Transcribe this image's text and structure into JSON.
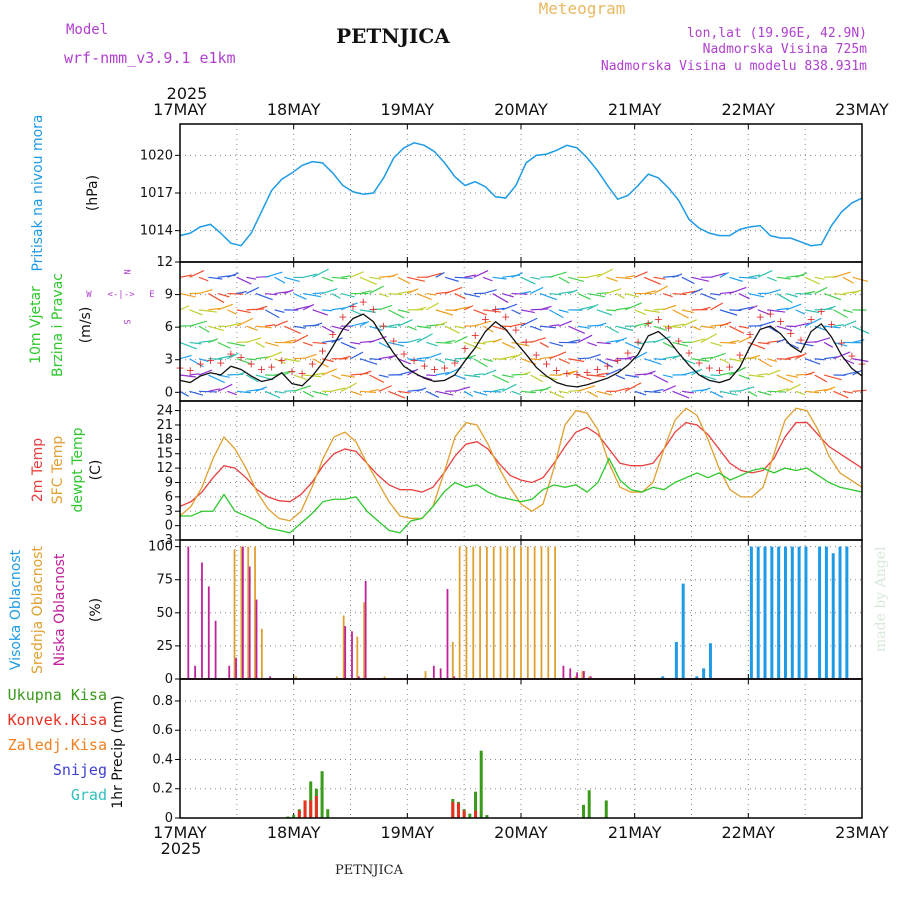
{
  "header": {
    "model_label": "Model",
    "model_name": "wrf-nmm_v3.9.1 e1km",
    "station": "PETNJICA",
    "meteogram_label": "Meteogram",
    "lonlat": "lon,lat (19.96E, 42.9N)",
    "altitude": "Nadmorska Visina 725m",
    "model_altitude": "Nadmorska Visina u modelu 838.931m",
    "footer_station": "PETNJICA",
    "watermark": "made by Angel"
  },
  "colors": {
    "pressure": "#1e9be6",
    "temp2m": "#e84040",
    "sfc_temp": "#e0a030",
    "dewpoint": "#2ec82e",
    "high_cloud": "#1e9be6",
    "mid_cloud": "#e0a030",
    "low_cloud": "#c0209a",
    "total_precip": "#3a9a1a",
    "conv_precip": "#e83020",
    "frozen": "#f08020",
    "snow": "#4040d0",
    "hail": "#30c0c0",
    "title": "#111111",
    "meteogram": "#e8b860",
    "info": "#b040d0"
  },
  "chart_data": [
    {
      "type": "line",
      "panel": "pressure",
      "year": "2025",
      "x_tick_labels": [
        "17MAY",
        "18MAY",
        "19MAY",
        "20MAY",
        "21MAY",
        "22MAY",
        "23MAY"
      ],
      "ylabel_series": "Pritisak na nivou mora",
      "ylabel_units": "(hPa)",
      "y_ticks": [
        1014,
        1017,
        1020
      ],
      "ylim": [
        1011.5,
        1022.5
      ],
      "grid": true,
      "series": [
        {
          "values": [
            1013.6,
            1013.8,
            1014.3,
            1014.5,
            1013.8,
            1013.0,
            1012.8,
            1013.8,
            1015.5,
            1017.2,
            1018.1,
            1018.6,
            1019.2,
            1019.5,
            1019.4,
            1018.6,
            1017.6,
            1017.1,
            1016.9,
            1017.0,
            1018.2,
            1019.8,
            1020.6,
            1021.0,
            1020.8,
            1020.3,
            1019.4,
            1018.3,
            1017.6,
            1017.9,
            1017.5,
            1016.7,
            1016.6,
            1017.6,
            1019.4,
            1020.0,
            1020.1,
            1020.4,
            1020.8,
            1020.6,
            1019.8,
            1018.8,
            1017.6,
            1016.5,
            1016.8,
            1017.6,
            1018.5,
            1018.2,
            1017.4,
            1016.4,
            1014.9,
            1014.2,
            1013.8,
            1013.6,
            1013.6,
            1014.1,
            1014.3,
            1014.4,
            1013.6,
            1013.4,
            1013.4,
            1013.1,
            1012.8,
            1012.9,
            1014.4,
            1015.5,
            1016.2,
            1016.6
          ]
        }
      ]
    },
    {
      "type": "line",
      "panel": "wind",
      "ylabel_series": "10m Vjetar",
      "ylabel_series2": "Brzina i Pravac",
      "ylabel_units": "(m/s)",
      "compass": {
        "w": "W",
        "e": "E",
        "n": "N",
        "s": "S",
        "sep": "<-|->"
      },
      "y_ticks": [
        0,
        3,
        6,
        9,
        12
      ],
      "ylim": [
        -0.8,
        12
      ],
      "grid": true,
      "series": [
        {
          "name": "wind speed",
          "values": [
            1.1,
            0.9,
            1.5,
            1.8,
            1.6,
            2.4,
            2.1,
            1.5,
            1.0,
            1.2,
            1.8,
            0.8,
            0.6,
            1.5,
            2.7,
            4.2,
            5.8,
            6.8,
            7.2,
            6.5,
            5.0,
            3.6,
            2.4,
            1.8,
            1.3,
            1.0,
            1.1,
            1.6,
            2.9,
            4.1,
            5.6,
            6.5,
            5.8,
            4.6,
            3.5,
            2.3,
            1.5,
            0.9,
            0.6,
            0.5,
            0.7,
            1.0,
            1.3,
            1.8,
            2.5,
            3.5,
            5.2,
            5.6,
            4.8,
            3.6,
            2.5,
            1.6,
            1.1,
            0.9,
            1.2,
            2.3,
            4.2,
            5.8,
            6.1,
            5.4,
            4.3,
            3.7,
            5.6,
            6.3,
            5.1,
            3.4,
            2.2,
            1.5
          ]
        }
      ]
    },
    {
      "type": "line",
      "panel": "temperature",
      "ylabel_series": [
        "2m Temp",
        "SFC Temp",
        "dewpt Temp"
      ],
      "ylabel_units": "(C)",
      "y_ticks": [
        -3,
        0,
        3,
        6,
        9,
        12,
        15,
        18,
        21,
        24
      ],
      "ylim": [
        -3,
        26
      ],
      "grid": true,
      "series": [
        {
          "name": "2m Temp",
          "values": [
            4.0,
            5.0,
            7.0,
            10.0,
            12.5,
            12.0,
            10.0,
            7.5,
            6.0,
            5.2,
            5.0,
            6.5,
            9.0,
            12.5,
            15.0,
            16.0,
            15.5,
            13.0,
            10.5,
            8.5,
            7.5,
            7.5,
            7.0,
            8.0,
            11.0,
            14.5,
            17.0,
            17.5,
            16.0,
            13.0,
            10.5,
            9.5,
            9.0,
            10.0,
            13.0,
            16.5,
            19.5,
            20.5,
            19.0,
            16.0,
            13.0,
            12.5,
            12.5,
            13.0,
            16.0,
            19.5,
            21.5,
            21.0,
            19.0,
            16.0,
            13.0,
            11.5,
            11.0,
            11.5,
            14.0,
            18.5,
            21.5,
            21.5,
            19.0,
            16.5,
            15.0,
            13.5,
            12.0
          ]
        },
        {
          "name": "SFC Temp",
          "values": [
            2.0,
            4.0,
            8.0,
            14.0,
            18.5,
            16.0,
            12.0,
            7.0,
            3.5,
            1.5,
            1.0,
            3.0,
            8.0,
            14.0,
            18.5,
            19.5,
            17.5,
            13.0,
            9.0,
            5.0,
            2.0,
            1.5,
            1.5,
            4.0,
            11.0,
            18.5,
            21.5,
            21.0,
            17.0,
            12.0,
            8.0,
            4.5,
            3.0,
            4.5,
            12.0,
            21.0,
            24.0,
            23.5,
            20.0,
            13.0,
            8.0,
            7.0,
            7.0,
            9.0,
            16.0,
            22.0,
            24.5,
            23.0,
            18.0,
            12.0,
            7.5,
            6.0,
            6.0,
            8.0,
            15.0,
            22.0,
            24.5,
            24.0,
            20.0,
            14.5,
            11.0,
            9.5,
            8.0
          ]
        },
        {
          "name": "dewpt Temp",
          "values": [
            2.0,
            2.0,
            3.0,
            3.0,
            6.5,
            3.0,
            2.0,
            1.0,
            -0.5,
            -1.0,
            -1.5,
            0.5,
            2.5,
            5.0,
            5.5,
            5.5,
            6.0,
            3.0,
            1.0,
            -1.0,
            -1.5,
            1.0,
            1.5,
            4.0,
            7.0,
            9.0,
            8.0,
            8.5,
            7.0,
            6.0,
            5.5,
            5.0,
            5.5,
            7.5,
            8.5,
            8.0,
            8.5,
            7.0,
            9.0,
            14.0,
            9.5,
            7.5,
            7.0,
            8.0,
            7.5,
            9.0,
            10.0,
            11.0,
            10.0,
            11.0,
            9.5,
            10.5,
            11.5,
            12.0,
            11.0,
            12.0,
            11.5,
            12.0,
            10.5,
            9.0,
            8.0,
            7.5,
            7.0
          ]
        }
      ]
    },
    {
      "type": "bar",
      "panel": "cloud",
      "ylabel_series": [
        "Visoka Oblacnost",
        "Srednja Oblacnost",
        "Niska Oblacnost"
      ],
      "ylabel_units": "(%)",
      "y_ticks": [
        0,
        25,
        50,
        75,
        100
      ],
      "ylim": [
        0,
        105
      ],
      "grid": true,
      "series": [
        {
          "name": "Visoka Oblacnost",
          "bars": [
            [
              71,
              2
            ],
            [
              73,
              28
            ],
            [
              74,
              72
            ],
            [
              76,
              2
            ],
            [
              77,
              8
            ],
            [
              78,
              27
            ],
            [
              84,
              100
            ],
            [
              85,
              100
            ],
            [
              86,
              100
            ],
            [
              87,
              100
            ],
            [
              88,
              100
            ],
            [
              89,
              100
            ],
            [
              90,
              100
            ],
            [
              91,
              100
            ],
            [
              92,
              100
            ],
            [
              94,
              100
            ],
            [
              95,
              100
            ],
            [
              96,
              95
            ],
            [
              97,
              100
            ],
            [
              98,
              100
            ]
          ]
        },
        {
          "name": "Srednja Oblacnost",
          "bars": [
            [
              8,
              98
            ],
            [
              9,
              100
            ],
            [
              10,
              100
            ],
            [
              11,
              100
            ],
            [
              12,
              38
            ],
            [
              17,
              2
            ],
            [
              23,
              2
            ],
            [
              24,
              48
            ],
            [
              26,
              32
            ],
            [
              27,
              58
            ],
            [
              30,
              2
            ],
            [
              36,
              6
            ],
            [
              40,
              28
            ],
            [
              41,
              100
            ],
            [
              42,
              100
            ],
            [
              43,
              100
            ],
            [
              44,
              100
            ],
            [
              45,
              100
            ],
            [
              46,
              100
            ],
            [
              47,
              100
            ],
            [
              48,
              100
            ],
            [
              49,
              100
            ],
            [
              50,
              100
            ],
            [
              51,
              100
            ],
            [
              52,
              100
            ],
            [
              53,
              100
            ],
            [
              54,
              100
            ],
            [
              55,
              100
            ],
            [
              58,
              2
            ],
            [
              59,
              6
            ],
            [
              60,
              2
            ]
          ]
        },
        {
          "name": "Niska Oblacnost",
          "bars": [
            [
              1,
              100
            ],
            [
              2,
              10
            ],
            [
              3,
              88
            ],
            [
              4,
              70
            ],
            [
              5,
              44
            ],
            [
              7,
              10
            ],
            [
              8,
              16
            ],
            [
              9,
              100
            ],
            [
              10,
              85
            ],
            [
              11,
              60
            ],
            [
              13,
              2
            ],
            [
              24,
              40
            ],
            [
              25,
              36
            ],
            [
              26,
              2
            ],
            [
              27,
              74
            ],
            [
              37,
              10
            ],
            [
              38,
              8
            ],
            [
              39,
              68
            ],
            [
              40,
              2
            ],
            [
              56,
              10
            ],
            [
              57,
              8
            ],
            [
              58,
              5
            ],
            [
              59,
              6
            ],
            [
              60,
              2
            ]
          ]
        }
      ]
    },
    {
      "type": "bar",
      "panel": "precip",
      "ylabel_series": [
        "Ukupna Kisa",
        "Konvek.Kisa",
        "Zaledj.Kisa",
        "Snijeg",
        "Grad"
      ],
      "ylabel_units": "1hr Precip (mm)",
      "x_tick_labels": [
        "17MAY",
        "18MAY",
        "19MAY",
        "20MAY",
        "21MAY",
        "22MAY",
        "23MAY"
      ],
      "year": "2025",
      "y_ticks": [
        0,
        0.2,
        0.4,
        0.6,
        0.8
      ],
      "ylim": [
        0,
        0.95
      ],
      "grid": true,
      "series": [
        {
          "name": "Ukupna Kisa",
          "bars": [
            [
              19,
              0.01
            ],
            [
              20,
              0.02
            ],
            [
              21,
              0.06
            ],
            [
              22,
              0.12
            ],
            [
              23,
              0.25
            ],
            [
              24,
              0.2
            ],
            [
              25,
              0.32
            ],
            [
              26,
              0.06
            ],
            [
              48,
              0.13
            ],
            [
              49,
              0.11
            ],
            [
              50,
              0.06
            ],
            [
              51,
              0.03
            ],
            [
              52,
              0.18
            ],
            [
              53,
              0.46
            ],
            [
              54,
              0.02
            ],
            [
              71,
              0.09
            ],
            [
              72,
              0.19
            ],
            [
              75,
              0.12
            ]
          ]
        },
        {
          "name": "Konvek.Kisa",
          "bars": [
            [
              21,
              0.05
            ],
            [
              22,
              0.12
            ],
            [
              23,
              0.12
            ],
            [
              24,
              0.15
            ],
            [
              48,
              0.11
            ],
            [
              49,
              0.1
            ],
            [
              50,
              0.05
            ],
            [
              52,
              0.05
            ]
          ]
        }
      ]
    }
  ]
}
